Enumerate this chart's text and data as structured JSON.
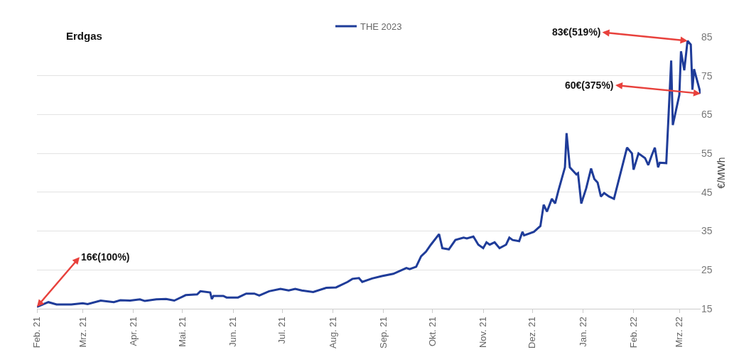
{
  "chart_data": {
    "type": "line",
    "title": "Erdgas",
    "ylabel": "€/MWh",
    "x": [
      "2021-02-01",
      "2021-02-08",
      "2021-02-13",
      "2021-02-22",
      "2021-03-01",
      "2021-03-04",
      "2021-03-12",
      "2021-03-20",
      "2021-03-24",
      "2021-03-30",
      "2021-04-05",
      "2021-04-08",
      "2021-04-15",
      "2021-04-21",
      "2021-04-26",
      "2021-05-03",
      "2021-05-10",
      "2021-05-12",
      "2021-05-18",
      "2021-05-19",
      "2021-05-20",
      "2021-05-26",
      "2021-05-28",
      "2021-06-04",
      "2021-06-09",
      "2021-06-14",
      "2021-06-17",
      "2021-06-23",
      "2021-06-30",
      "2021-07-05",
      "2021-07-09",
      "2021-07-13",
      "2021-07-20",
      "2021-07-28",
      "2021-08-03",
      "2021-08-10",
      "2021-08-13",
      "2021-08-17",
      "2021-08-19",
      "2021-08-25",
      "2021-08-31",
      "2021-09-07",
      "2021-09-15",
      "2021-09-17",
      "2021-09-21",
      "2021-09-24",
      "2021-09-27",
      "2021-09-30",
      "2021-10-05",
      "2021-10-07",
      "2021-10-11",
      "2021-10-15",
      "2021-10-20",
      "2021-10-22",
      "2021-10-26",
      "2021-10-29",
      "2021-11-01",
      "2021-11-03",
      "2021-11-05",
      "2021-11-08",
      "2021-11-11",
      "2021-11-15",
      "2021-11-17",
      "2021-11-19",
      "2021-11-23",
      "2021-11-25",
      "2021-11-26",
      "2021-12-02",
      "2021-12-06",
      "2021-12-08",
      "2021-12-10",
      "2021-12-13",
      "2021-12-15",
      "2021-12-17",
      "2021-12-21",
      "2021-12-22",
      "2021-12-24",
      "2021-12-28",
      "2021-12-29",
      "2021-12-31",
      "2022-01-03",
      "2022-01-06",
      "2022-01-08",
      "2022-01-10",
      "2022-01-12",
      "2022-01-14",
      "2022-01-17",
      "2022-01-20",
      "2022-01-28",
      "2022-01-31",
      "2022-02-01",
      "2022-02-04",
      "2022-02-08",
      "2022-02-10",
      "2022-02-12",
      "2022-02-14",
      "2022-02-16",
      "2022-02-17",
      "2022-02-21",
      "2022-02-24",
      "2022-02-25",
      "2022-03-01",
      "2022-03-02",
      "2022-03-04",
      "2022-03-06",
      "2022-03-08",
      "2022-03-09",
      "2022-03-10",
      "2022-03-14"
    ],
    "series": [
      {
        "name": "THE 2023",
        "color": "#1f3c99",
        "values": [
          15.5,
          16.7,
          16.1,
          16.1,
          16.4,
          16.2,
          17.1,
          16.7,
          17.2,
          17.1,
          17.4,
          17.0,
          17.4,
          17.5,
          17.1,
          18.5,
          18.7,
          19.5,
          19.2,
          17.5,
          18.3,
          18.3,
          17.9,
          17.9,
          18.9,
          18.9,
          18.4,
          19.5,
          20.1,
          19.7,
          20.1,
          19.7,
          19.3,
          20.4,
          20.5,
          21.9,
          22.7,
          22.9,
          21.9,
          22.8,
          23.4,
          24.0,
          25.5,
          25.2,
          25.8,
          28.5,
          29.7,
          31.5,
          34.2,
          30.6,
          30.3,
          32.7,
          33.3,
          33.1,
          33.6,
          31.5,
          30.6,
          32.1,
          31.5,
          32.1,
          30.6,
          31.5,
          33.3,
          32.7,
          32.4,
          34.8,
          33.9,
          34.8,
          36.3,
          41.8,
          40.0,
          43.3,
          42.1,
          45.4,
          51.4,
          60.2,
          51.4,
          49.6,
          49.9,
          42.1,
          46.0,
          51.1,
          48.4,
          47.5,
          43.9,
          44.8,
          43.9,
          43.3,
          56.5,
          55.0,
          50.8,
          55.0,
          53.8,
          52.0,
          54.4,
          56.5,
          51.4,
          52.6,
          52.5,
          78.9,
          62.3,
          70.1,
          81.3,
          76.4,
          84.0,
          83.0,
          71.4,
          76.7,
          70.4
        ]
      }
    ],
    "xlim": [
      "2021-02-01",
      "2022-03-14"
    ],
    "xticks": [
      {
        "value": "2021-02-01",
        "label": "Feb. 21"
      },
      {
        "value": "2021-03-01",
        "label": "Mrz. 21"
      },
      {
        "value": "2021-04-01",
        "label": "Apr. 21"
      },
      {
        "value": "2021-05-01",
        "label": "Mai. 21"
      },
      {
        "value": "2021-06-01",
        "label": "Jun. 21"
      },
      {
        "value": "2021-07-01",
        "label": "Jul. 21"
      },
      {
        "value": "2021-08-01",
        "label": "Aug. 21"
      },
      {
        "value": "2021-09-01",
        "label": "Sep. 21"
      },
      {
        "value": "2021-10-01",
        "label": "Okt. 21"
      },
      {
        "value": "2021-11-01",
        "label": "Nov. 21"
      },
      {
        "value": "2021-12-01",
        "label": "Dez. 21"
      },
      {
        "value": "2022-01-01",
        "label": "Jan. 22"
      },
      {
        "value": "2022-02-01",
        "label": "Feb. 22"
      },
      {
        "value": "2022-03-01",
        "label": "Mrz. 22"
      }
    ],
    "ylim": [
      15,
      85
    ],
    "yticks": [
      15,
      25,
      35,
      45,
      55,
      65,
      75,
      85
    ],
    "grid": "y",
    "legend": "top",
    "marker": "none",
    "line_style": "solid",
    "annotations": [
      {
        "text": "16€(100%)",
        "x": "2021-02-01",
        "y": 15.5
      },
      {
        "text": "83€(519%)",
        "x": "2022-03-06",
        "y": 84.0
      },
      {
        "text": "60€(375%)",
        "x": "2022-03-14",
        "y": 70.4
      }
    ]
  }
}
